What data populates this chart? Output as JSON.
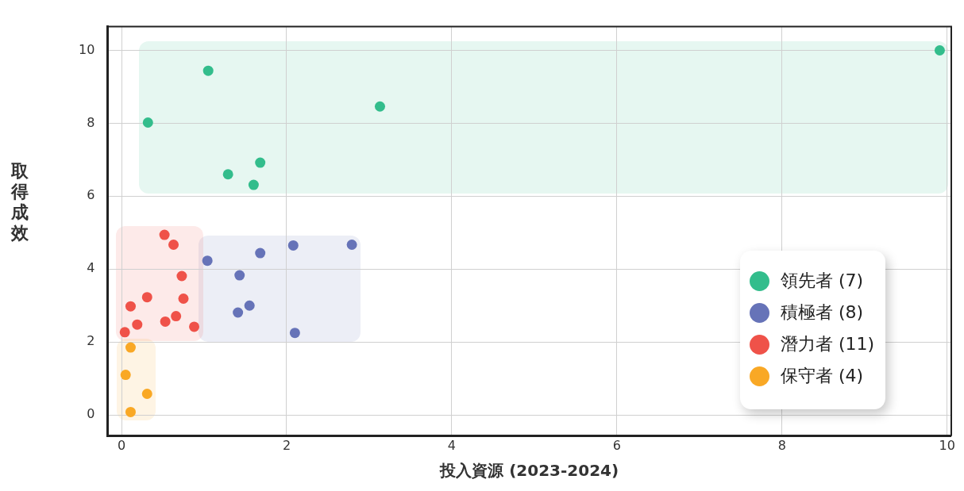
{
  "chart_data": {
    "type": "scatter",
    "xlabel": "投入資源 (2023-2024)",
    "ylabel": "取得成效",
    "xlim": [
      -0.17,
      10.05
    ],
    "ylim": [
      -0.58,
      10.65
    ],
    "xticks": [
      0,
      2,
      4,
      6,
      8,
      10
    ],
    "yticks": [
      0,
      2,
      4,
      6,
      8,
      10
    ],
    "grid": true,
    "legend": "bottom right",
    "marker": "circle",
    "series": [
      {
        "name": "領先者 (7)",
        "color": "#33bd8c",
        "x": [
          9.91,
          1.05,
          0.32,
          3.13,
          1.29,
          1.68,
          1.6
        ],
        "values": [
          10.0,
          9.44,
          8.02,
          8.46,
          6.6,
          6.92,
          6.31
        ]
      },
      {
        "name": "積極者 (8)",
        "color": "#6673b8",
        "x": [
          1.04,
          1.43,
          1.68,
          2.08,
          2.79,
          1.41,
          1.55,
          2.1
        ],
        "values": [
          4.23,
          3.83,
          4.44,
          4.65,
          4.67,
          2.81,
          3.0,
          2.25
        ]
      },
      {
        "name": "潛力者 (11)",
        "color": "#ef5249",
        "x": [
          0.52,
          0.63,
          0.73,
          0.31,
          0.11,
          0.75,
          0.66,
          0.53,
          0.19,
          0.88,
          0.04
        ],
        "values": [
          4.94,
          4.67,
          3.81,
          3.23,
          2.98,
          3.19,
          2.71,
          2.56,
          2.48,
          2.42,
          2.27
        ]
      },
      {
        "name": "保守者 (4)",
        "color": "#f9a825",
        "x": [
          0.11,
          0.05,
          0.31,
          0.11
        ],
        "values": [
          1.85,
          1.1,
          0.58,
          0.08
        ]
      }
    ]
  }
}
